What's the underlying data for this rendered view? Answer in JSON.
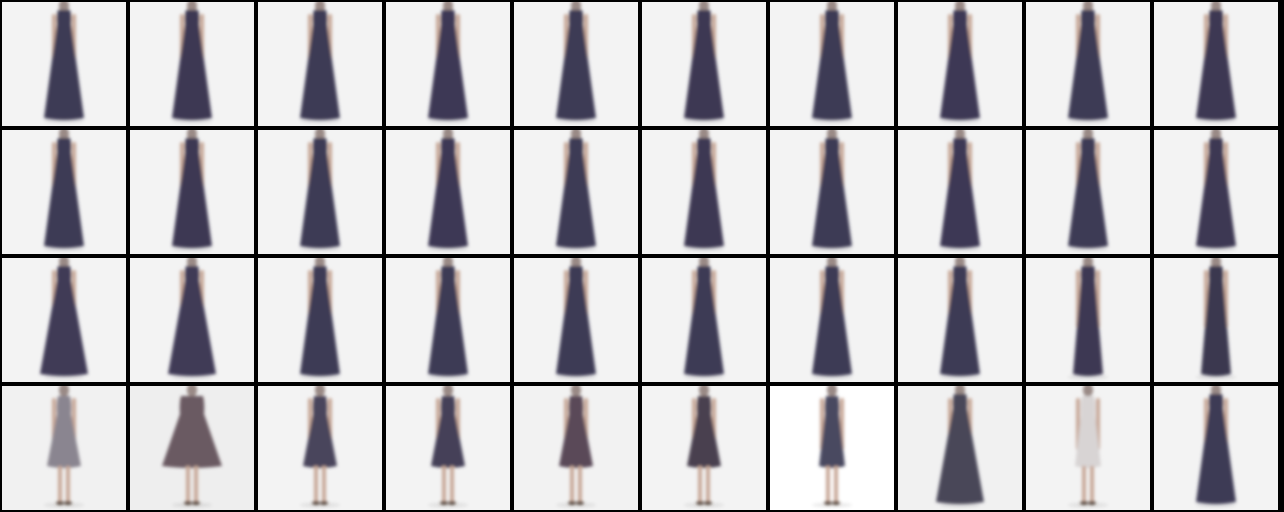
{
  "grid": {
    "rows": 4,
    "columns": 10,
    "background_color": "#000000",
    "tile_background": "#f4f4f4",
    "dress_color": "#3c3a52",
    "skin_color": "#c8a898",
    "tiles": [
      {
        "row": 0,
        "col": 0,
        "dress": "#3e3a55",
        "bg": "#f3f3f3",
        "length": "long"
      },
      {
        "row": 0,
        "col": 1,
        "dress": "#3d3953",
        "bg": "#f3f3f3",
        "length": "long"
      },
      {
        "row": 0,
        "col": 2,
        "dress": "#3e3a55",
        "bg": "#f3f3f3",
        "length": "long"
      },
      {
        "row": 0,
        "col": 3,
        "dress": "#3d3954",
        "bg": "#f3f3f3",
        "length": "long"
      },
      {
        "row": 0,
        "col": 4,
        "dress": "#3e3a55",
        "bg": "#f3f3f3",
        "length": "long"
      },
      {
        "row": 0,
        "col": 5,
        "dress": "#3d3953",
        "bg": "#f3f3f3",
        "length": "long"
      },
      {
        "row": 0,
        "col": 6,
        "dress": "#3e3a55",
        "bg": "#f3f3f3",
        "length": "long"
      },
      {
        "row": 0,
        "col": 7,
        "dress": "#3d3954",
        "bg": "#f3f3f3",
        "length": "long"
      },
      {
        "row": 0,
        "col": 8,
        "dress": "#3e3a55",
        "bg": "#f3f3f3",
        "length": "long"
      },
      {
        "row": 0,
        "col": 9,
        "dress": "#3d3953",
        "bg": "#f3f3f3",
        "length": "long"
      },
      {
        "row": 1,
        "col": 0,
        "dress": "#3e3a55",
        "bg": "#f3f3f3",
        "length": "long"
      },
      {
        "row": 1,
        "col": 1,
        "dress": "#3d3953",
        "bg": "#f3f3f3",
        "length": "long"
      },
      {
        "row": 1,
        "col": 2,
        "dress": "#3e3a55",
        "bg": "#f3f3f3",
        "length": "long"
      },
      {
        "row": 1,
        "col": 3,
        "dress": "#3d3954",
        "bg": "#f3f3f3",
        "length": "long"
      },
      {
        "row": 1,
        "col": 4,
        "dress": "#3e3a55",
        "bg": "#f3f3f3",
        "length": "long"
      },
      {
        "row": 1,
        "col": 5,
        "dress": "#3d3953",
        "bg": "#f3f3f3",
        "length": "long"
      },
      {
        "row": 1,
        "col": 6,
        "dress": "#3e3a55",
        "bg": "#f3f3f3",
        "length": "long"
      },
      {
        "row": 1,
        "col": 7,
        "dress": "#3d3954",
        "bg": "#f3f3f3",
        "length": "long"
      },
      {
        "row": 1,
        "col": 8,
        "dress": "#3e3a55",
        "bg": "#f3f3f3",
        "length": "long"
      },
      {
        "row": 1,
        "col": 9,
        "dress": "#3d3953",
        "bg": "#f3f3f3",
        "length": "long"
      },
      {
        "row": 2,
        "col": 0,
        "dress": "#3f3b56",
        "bg": "#f3f3f3",
        "length": "long-wide"
      },
      {
        "row": 2,
        "col": 1,
        "dress": "#3f3b56",
        "bg": "#f3f3f3",
        "length": "long-wide"
      },
      {
        "row": 2,
        "col": 2,
        "dress": "#3e3a55",
        "bg": "#f3f3f3",
        "length": "long"
      },
      {
        "row": 2,
        "col": 3,
        "dress": "#3e3a55",
        "bg": "#f3f3f3",
        "length": "long"
      },
      {
        "row": 2,
        "col": 4,
        "dress": "#3e3a55",
        "bg": "#f3f3f3",
        "length": "long"
      },
      {
        "row": 2,
        "col": 5,
        "dress": "#3e3a55",
        "bg": "#f3f3f3",
        "length": "long"
      },
      {
        "row": 2,
        "col": 6,
        "dress": "#3e3a55",
        "bg": "#f3f3f3",
        "length": "long"
      },
      {
        "row": 2,
        "col": 7,
        "dress": "#3e3a55",
        "bg": "#f3f3f3",
        "length": "long"
      },
      {
        "row": 2,
        "col": 8,
        "dress": "#3c3952",
        "bg": "#f3f3f3",
        "length": "long-narrow"
      },
      {
        "row": 2,
        "col": 9,
        "dress": "#3a3850",
        "bg": "#f3f3f3",
        "length": "long-narrow"
      },
      {
        "row": 3,
        "col": 0,
        "dress": "#8a8590",
        "bg": "#f1f1f1",
        "length": "short"
      },
      {
        "row": 3,
        "col": 1,
        "dress": "#6a5a62",
        "bg": "#eeeeee",
        "length": "short-wide"
      },
      {
        "row": 3,
        "col": 2,
        "dress": "#48455c",
        "bg": "#f3f3f3",
        "length": "short"
      },
      {
        "row": 3,
        "col": 3,
        "dress": "#444158",
        "bg": "#f3f3f3",
        "length": "short"
      },
      {
        "row": 3,
        "col": 4,
        "dress": "#5a4a58",
        "bg": "#f2f2f2",
        "length": "short"
      },
      {
        "row": 3,
        "col": 5,
        "dress": "#4a4050",
        "bg": "#f3f3f3",
        "length": "short"
      },
      {
        "row": 3,
        "col": 6,
        "dress": "#4a4860",
        "bg": "#ffffff",
        "length": "short-slim"
      },
      {
        "row": 3,
        "col": 7,
        "dress": "#4a4658",
        "bg": "#f1f1f1",
        "length": "long-wide"
      },
      {
        "row": 3,
        "col": 8,
        "dress": "#d8d4d4",
        "bg": "#f3f3f3",
        "length": "short-slim"
      },
      {
        "row": 3,
        "col": 9,
        "dress": "#3e3a55",
        "bg": "#f3f3f3",
        "length": "long"
      }
    ]
  }
}
